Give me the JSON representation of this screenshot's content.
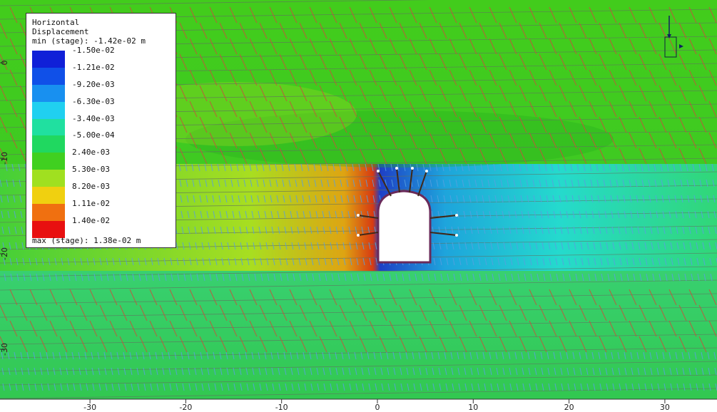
{
  "legend": {
    "title_line1": "Horizontal",
    "title_line2": "Displacement",
    "min_text": "min (stage): -1.42e-02 m",
    "max_text": "max (stage): 1.38e-02 m",
    "entries": [
      {
        "label": "-1.50e-02",
        "color": "#1020d8"
      },
      {
        "label": "-1.21e-02",
        "color": "#1050e8"
      },
      {
        "label": "-9.20e-03",
        "color": "#1890f0"
      },
      {
        "label": "-6.30e-03",
        "color": "#20d0f0"
      },
      {
        "label": "-3.40e-03",
        "color": "#20e0a0"
      },
      {
        "label": "-5.00e-04",
        "color": "#20d860"
      },
      {
        "label": "2.40e-03",
        "color": "#40d020"
      },
      {
        "label": "5.30e-03",
        "color": "#a0e020"
      },
      {
        "label": "8.20e-03",
        "color": "#f0d010"
      },
      {
        "label": "1.11e-02",
        "color": "#f07010"
      },
      {
        "label": "1.40e-02",
        "color": "#e81010"
      }
    ]
  },
  "axes": {
    "x_ticks": [
      "-30",
      "-20",
      "-10",
      "0",
      "10",
      "20",
      "30"
    ],
    "y_ticks": [
      "0",
      "-10",
      "-20",
      "-30"
    ]
  },
  "colors": {
    "background": "#3fd01e",
    "joint_red": "#c8503c",
    "joint_blue": "#58a0e0",
    "excavation": "#ffffff",
    "bolt": "#6a2a5a"
  }
}
